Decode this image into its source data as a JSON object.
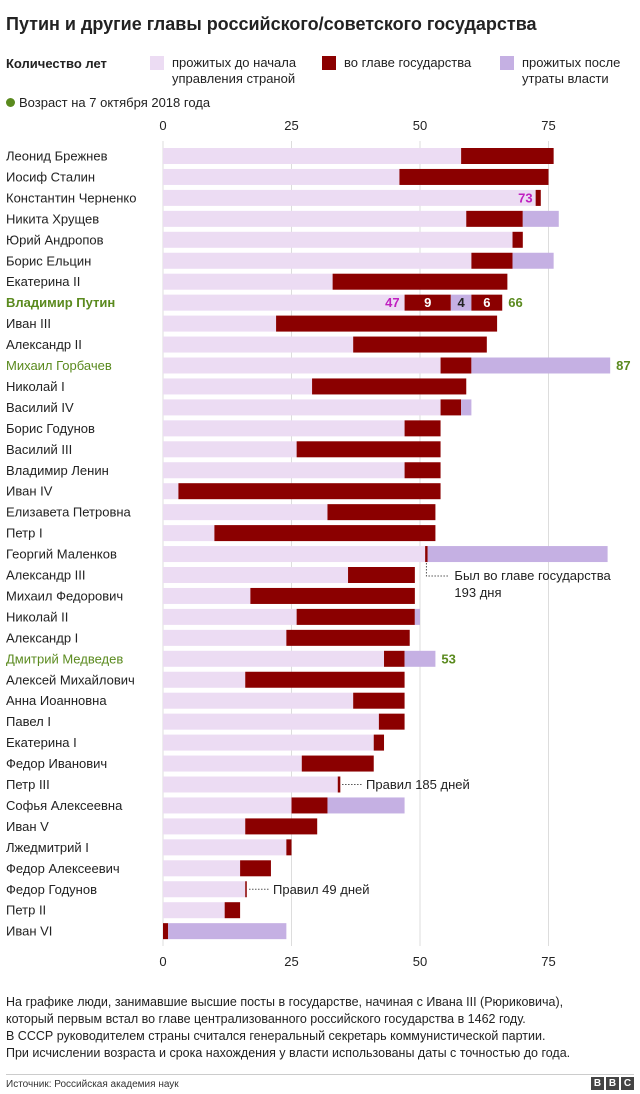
{
  "title": "Путин и другие главы российского/советского государства",
  "legend": {
    "heading": "Количество лет",
    "items": [
      {
        "label_line1": "прожитых до начала",
        "label_line2": "управления страной",
        "color": "#ecdcf3"
      },
      {
        "label_line1": "во главе государства",
        "label_line2": "",
        "color": "#8b0000"
      },
      {
        "label_line1": "прожитых после",
        "label_line2": "утраты власти",
        "color": "#c5b0e3"
      }
    ],
    "age_note": "Возраст на 7 октября 2018 года",
    "age_color": "#5a8a1e"
  },
  "chart_data": {
    "type": "bar",
    "orientation": "horizontal",
    "stacked": true,
    "xlim": [
      0,
      87
    ],
    "xticks": [
      0,
      25,
      50,
      75
    ],
    "series_names": [
      "прожитых до начала управления страной",
      "во главе государства",
      "прожитых после утраты власти"
    ],
    "colors": {
      "before": "#ecdcf3",
      "rule": "#8b0000",
      "after": "#c5b0e3",
      "highlight": "#5a8a1e",
      "putin_gap": "#c5b0e3"
    },
    "rows": [
      {
        "name": "Леонид Брежнев",
        "before": 58,
        "rule": 18,
        "after": 0
      },
      {
        "name": "Иосиф Сталин",
        "before": 46,
        "rule": 29,
        "after": 0
      },
      {
        "name": "Константин Черненко",
        "before": 72.5,
        "rule": 1,
        "after": 0,
        "label": "73",
        "label_color": "#c020c0"
      },
      {
        "name": "Никита Хрущев",
        "before": 59,
        "rule": 11,
        "after": 7
      },
      {
        "name": "Юрий Андропов",
        "before": 68,
        "rule": 2,
        "after": 0
      },
      {
        "name": "Борис Ельцин",
        "before": 60,
        "rule": 8,
        "after": 8
      },
      {
        "name": "Екатерина II",
        "before": 33,
        "rule": 34,
        "after": 0
      },
      {
        "name": "Владимир Путин",
        "highlight": true,
        "putin": true,
        "segments": [
          {
            "kind": "before",
            "value": 47,
            "label": "47"
          },
          {
            "kind": "rule",
            "value": 9,
            "label": "9"
          },
          {
            "kind": "gap",
            "value": 4,
            "label": "4"
          },
          {
            "kind": "rule",
            "value": 6,
            "label": "6"
          }
        ],
        "label": "66"
      },
      {
        "name": "Иван III",
        "before": 22,
        "rule": 43,
        "after": 0
      },
      {
        "name": "Александр II",
        "before": 37,
        "rule": 26,
        "after": 0
      },
      {
        "name": "Михаил Горбачев",
        "highlight": true,
        "before": 54,
        "rule": 6,
        "after": 27,
        "label": "87"
      },
      {
        "name": "Николай I",
        "before": 29,
        "rule": 30,
        "after": 0
      },
      {
        "name": "Василий IV",
        "before": 54,
        "rule": 4,
        "after": 2
      },
      {
        "name": "Борис Годунов",
        "before": 47,
        "rule": 7,
        "after": 0
      },
      {
        "name": "Василий III",
        "before": 26,
        "rule": 28,
        "after": 0
      },
      {
        "name": "Владимир Ленин",
        "before": 47,
        "rule": 7,
        "after": 0
      },
      {
        "name": "Иван IV",
        "before": 3,
        "rule": 51,
        "after": 0
      },
      {
        "name": "Елизавета Петровна",
        "before": 32,
        "rule": 21,
        "after": 0
      },
      {
        "name": "Петр I",
        "before": 10,
        "rule": 43,
        "after": 0
      },
      {
        "name": "Георгий Маленков",
        "before": 51,
        "rule": 0.5,
        "after": 35
      },
      {
        "name": "Александр III",
        "before": 36,
        "rule": 13,
        "after": 0
      },
      {
        "name": "Михаил Федорович",
        "before": 17,
        "rule": 32,
        "after": 0
      },
      {
        "name": "Николай II",
        "before": 26,
        "rule": 23,
        "after": 1
      },
      {
        "name": "Александр I",
        "before": 24,
        "rule": 24,
        "after": 0
      },
      {
        "name": "Дмитрий Медведев",
        "highlight": true,
        "before": 43,
        "rule": 4,
        "after": 6,
        "label": "53"
      },
      {
        "name": "Алексей Михайлович",
        "before": 16,
        "rule": 31,
        "after": 0
      },
      {
        "name": "Анна Иоанновна",
        "before": 37,
        "rule": 10,
        "after": 0
      },
      {
        "name": "Павел I",
        "before": 42,
        "rule": 5,
        "after": 0
      },
      {
        "name": "Екатерина I",
        "before": 41,
        "rule": 2,
        "after": 0
      },
      {
        "name": "Федор Иванович",
        "before": 27,
        "rule": 14,
        "after": 0
      },
      {
        "name": "Петр III",
        "before": 34,
        "rule": 0.5,
        "after": 0
      },
      {
        "name": "Софья Алексеевна",
        "before": 25,
        "rule": 7,
        "after": 15
      },
      {
        "name": "Иван V",
        "before": 16,
        "rule": 14,
        "after": 0
      },
      {
        "name": "Лжедмитрий I",
        "before": 24,
        "rule": 1,
        "after": 0
      },
      {
        "name": "Федор Алексеевич",
        "before": 15,
        "rule": 6,
        "after": 0
      },
      {
        "name": "Федор Годунов",
        "before": 16,
        "rule": 0.3,
        "after": 0
      },
      {
        "name": "Петр II",
        "before": 12,
        "rule": 3,
        "after": 0
      },
      {
        "name": "Иван VI",
        "before": 0,
        "rule": 1,
        "after": 23
      }
    ],
    "annotations": [
      {
        "row": "Георгий Маленков",
        "line1": "Был во главе государства",
        "line2": "193 дня"
      },
      {
        "row": "Петр III",
        "line1": "Правил 185 дней",
        "line2": ""
      },
      {
        "row": "Федор Годунов",
        "line1": "Правил 49 дней",
        "line2": ""
      }
    ]
  },
  "footnote": {
    "lines": [
      "На графике люди, занимавшие высшие посты в государстве, начиная с Ивана III (Рюриковича),",
      "который первым встал во главе централизованного российского государства в 1462 году.",
      "В СССР руководителем страны считался генеральный секретарь коммунистической партии.",
      "При исчислении возраста и срока нахождения у власти использованы даты с точностью до года."
    ]
  },
  "source": "Источник: Российская академия наук",
  "brand": [
    "B",
    "B",
    "C"
  ]
}
